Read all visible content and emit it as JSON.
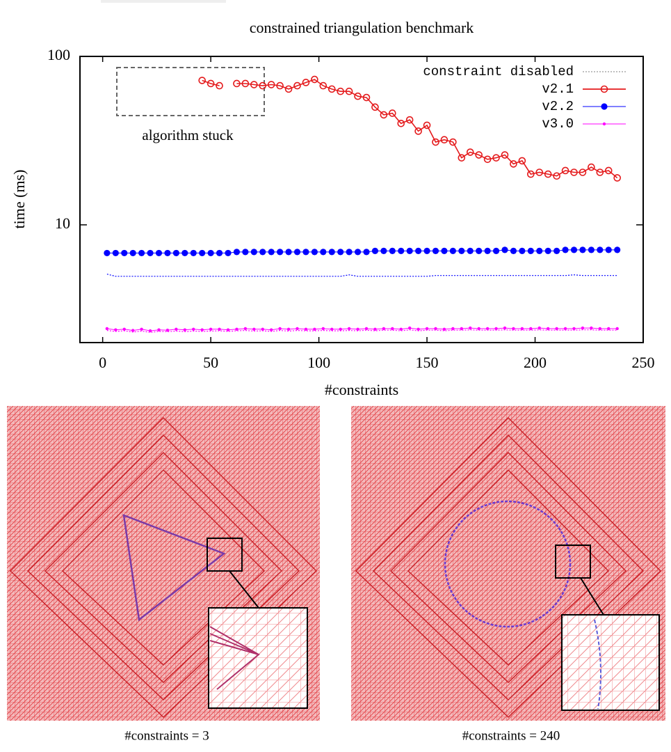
{
  "chart_data": {
    "type": "line",
    "title": "constrained triangulation benchmark",
    "x_label": "#constraints",
    "y_label": "time (ms)",
    "log_scale_y": true,
    "legend": "upper right",
    "xlim": [
      -10.5,
      250
    ],
    "ylim": [
      2,
      100
    ],
    "xticks": [
      0,
      50,
      100,
      150,
      200,
      250
    ],
    "yticks": [
      10,
      100
    ],
    "annotation": {
      "text": "algorithm stuck"
    },
    "disabled": {
      "name": "constraint disabled",
      "color": "#999999"
    },
    "x": [
      2,
      6,
      10,
      14,
      18,
      22,
      26,
      30,
      34,
      38,
      42,
      46,
      50,
      54,
      58,
      62,
      66,
      70,
      74,
      78,
      82,
      86,
      90,
      94,
      98,
      102,
      106,
      110,
      114,
      118,
      122,
      126,
      130,
      134,
      138,
      142,
      146,
      150,
      154,
      158,
      162,
      166,
      170,
      174,
      178,
      182,
      186,
      190,
      194,
      198,
      202,
      206,
      210,
      214,
      218,
      222,
      226,
      230,
      234,
      238
    ],
    "series": [
      {
        "name": "v2.1",
        "color": "#e41a1c",
        "marker": "open-circle",
        "values": [
          null,
          null,
          null,
          null,
          null,
          null,
          null,
          null,
          null,
          null,
          null,
          72,
          69,
          67,
          null,
          69,
          69,
          68,
          67,
          68,
          67,
          64,
          67,
          70,
          73,
          67,
          64,
          62,
          62,
          58,
          57,
          50,
          45,
          46,
          40,
          42,
          36,
          39,
          31,
          32,
          31,
          25,
          27,
          26,
          24.5,
          25,
          26,
          23,
          24,
          20,
          20.5,
          20,
          19.5,
          21,
          20.5,
          20.5,
          22,
          20.5,
          21,
          19
        ]
      },
      {
        "name": "v2.2",
        "color": "#0000ff",
        "marker": "filled-circle",
        "values": [
          6.8,
          6.8,
          6.8,
          6.8,
          6.8,
          6.8,
          6.8,
          6.8,
          6.8,
          6.8,
          6.8,
          6.8,
          6.8,
          6.8,
          6.8,
          6.9,
          6.9,
          6.9,
          6.9,
          6.9,
          6.9,
          6.9,
          6.9,
          6.9,
          6.9,
          6.9,
          6.9,
          6.9,
          6.9,
          6.9,
          6.9,
          7.0,
          7.0,
          7.0,
          7.0,
          7.0,
          7.0,
          7.0,
          7.0,
          7.0,
          7.0,
          7.0,
          7.0,
          7.0,
          7.0,
          7.0,
          7.1,
          7.0,
          7.0,
          7.0,
          7.0,
          7.0,
          7.0,
          7.1,
          7.1,
          7.1,
          7.1,
          7.1,
          7.1,
          7.1
        ],
        "disabled_values": [
          5.1,
          4.95,
          4.95,
          4.95,
          4.95,
          4.95,
          4.95,
          4.95,
          4.95,
          4.95,
          4.95,
          4.95,
          4.95,
          4.95,
          4.95,
          4.95,
          4.95,
          4.95,
          4.95,
          4.95,
          4.95,
          4.95,
          4.95,
          4.95,
          4.95,
          4.95,
          4.95,
          4.95,
          5.05,
          4.95,
          4.95,
          4.95,
          4.95,
          4.95,
          4.95,
          4.95,
          4.95,
          4.95,
          5.0,
          5.0,
          5.0,
          5.0,
          5.0,
          5.0,
          5.0,
          5.0,
          5.0,
          5.0,
          5.0,
          5.0,
          5.0,
          5.0,
          5.0,
          5.0,
          5.05,
          5.0,
          5.0,
          5.0,
          5.0,
          5.0
        ]
      },
      {
        "name": "v3.0",
        "color": "#ff00ff",
        "marker": "dot",
        "values": [
          2.42,
          2.38,
          2.4,
          2.36,
          2.4,
          2.35,
          2.38,
          2.37,
          2.4,
          2.38,
          2.4,
          2.38,
          2.4,
          2.4,
          2.38,
          2.4,
          2.42,
          2.4,
          2.4,
          2.38,
          2.42,
          2.4,
          2.42,
          2.4,
          2.4,
          2.42,
          2.4,
          2.4,
          2.42,
          2.4,
          2.42,
          2.4,
          2.42,
          2.42,
          2.4,
          2.44,
          2.4,
          2.42,
          2.42,
          2.4,
          2.42,
          2.42,
          2.44,
          2.42,
          2.42,
          2.42,
          2.44,
          2.42,
          2.42,
          2.42,
          2.44,
          2.42,
          2.42,
          2.42,
          2.42,
          2.44,
          2.44,
          2.42,
          2.42,
          2.42
        ],
        "disabled_values": [
          2.36,
          2.33,
          2.35,
          2.31,
          2.34,
          2.3,
          2.33,
          2.32,
          2.34,
          2.32,
          2.34,
          2.33,
          2.34,
          2.35,
          2.33,
          2.35,
          2.36,
          2.34,
          2.35,
          2.33,
          2.36,
          2.34,
          2.36,
          2.35,
          2.35,
          2.36,
          2.35,
          2.35,
          2.36,
          2.35,
          2.37,
          2.35,
          2.37,
          2.37,
          2.35,
          2.38,
          2.35,
          2.37,
          2.37,
          2.35,
          2.37,
          2.37,
          2.38,
          2.37,
          2.37,
          2.37,
          2.38,
          2.37,
          2.37,
          2.37,
          2.38,
          2.37,
          2.37,
          2.37,
          2.37,
          2.38,
          2.38,
          2.37,
          2.37,
          2.37
        ]
      }
    ]
  },
  "panels": [
    {
      "caption": "#constraints = 3"
    },
    {
      "caption": "#constraints = 240"
    }
  ]
}
